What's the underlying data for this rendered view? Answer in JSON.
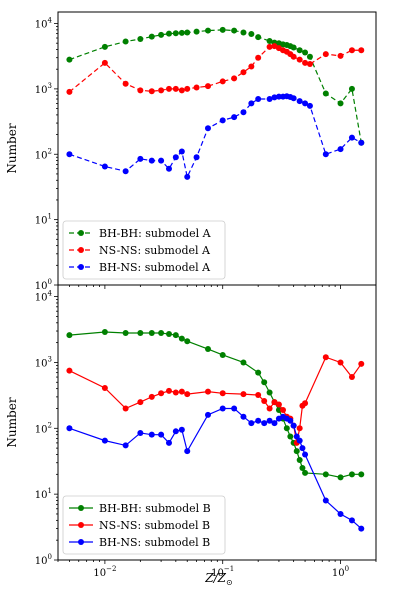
{
  "chart_data": {
    "type": "line",
    "xlabel": "Z/Z⊙",
    "xscale": "log",
    "xlim": [
      0.004,
      2.0
    ],
    "x_ticks": [
      {
        "value": 0.01,
        "mant": "10",
        "exp": "−2"
      },
      {
        "value": 0.1,
        "mant": "10",
        "exp": "−1"
      },
      {
        "value": 1,
        "mant": "10",
        "exp": "0"
      }
    ],
    "panels": [
      {
        "ylabel": "Number",
        "yscale": "log",
        "ylim": [
          1,
          15000
        ],
        "y_ticks": [
          {
            "value": 1,
            "mant": "10",
            "exp": "0"
          },
          {
            "value": 10,
            "mant": "10",
            "exp": "1"
          },
          {
            "value": 100,
            "mant": "10",
            "exp": "2"
          },
          {
            "value": 1000,
            "mant": "10",
            "exp": "3"
          },
          {
            "value": 10000,
            "mant": "10",
            "exp": "4"
          }
        ],
        "legend_position": "lower-left",
        "series": [
          {
            "name": "BH-BH: submodel A",
            "color": "#008000",
            "dash": true,
            "x": [
              0.005,
              0.01,
              0.015,
              0.02,
              0.025,
              0.03,
              0.035,
              0.04,
              0.045,
              0.05,
              0.06,
              0.075,
              0.1,
              0.125,
              0.15,
              0.175,
              0.2,
              0.25,
              0.275,
              0.3,
              0.325,
              0.35,
              0.375,
              0.4,
              0.45,
              0.5,
              0.55,
              0.75,
              1.0,
              1.25,
              1.5
            ],
            "y": [
              2800,
              4400,
              5300,
              5800,
              6300,
              6700,
              7000,
              7100,
              7200,
              7300,
              7500,
              7800,
              8000,
              7800,
              7300,
              6900,
              6200,
              5400,
              5100,
              5000,
              4800,
              4700,
              4500,
              4300,
              3900,
              3600,
              3100,
              850,
              600,
              1000,
              150
            ]
          },
          {
            "name": "NS-NS: submodel A",
            "color": "#ff0000",
            "dash": true,
            "x": [
              0.005,
              0.01,
              0.015,
              0.02,
              0.025,
              0.03,
              0.035,
              0.04,
              0.045,
              0.05,
              0.06,
              0.075,
              0.1,
              0.125,
              0.15,
              0.175,
              0.2,
              0.25,
              0.275,
              0.3,
              0.325,
              0.35,
              0.375,
              0.4,
              0.45,
              0.5,
              0.55,
              0.75,
              1.0,
              1.25,
              1.5
            ],
            "y": [
              900,
              2500,
              1200,
              950,
              920,
              950,
              1000,
              1000,
              950,
              1000,
              1050,
              1100,
              1300,
              1450,
              1800,
              2200,
              3000,
              4400,
              4500,
              4200,
              3900,
              3700,
              3400,
              3100,
              2800,
              2500,
              2400,
              3400,
              3200,
              3900,
              3900
            ]
          },
          {
            "name": "BH-NS: submodel A",
            "color": "#0000ff",
            "dash": true,
            "x": [
              0.005,
              0.01,
              0.015,
              0.02,
              0.025,
              0.03,
              0.035,
              0.04,
              0.045,
              0.05,
              0.06,
              0.075,
              0.1,
              0.125,
              0.15,
              0.175,
              0.2,
              0.25,
              0.275,
              0.3,
              0.325,
              0.35,
              0.375,
              0.4,
              0.45,
              0.5,
              0.55,
              0.75,
              1.0,
              1.25,
              1.5
            ],
            "y": [
              100,
              65,
              55,
              85,
              80,
              80,
              60,
              90,
              110,
              45,
              90,
              250,
              330,
              370,
              440,
              600,
              700,
              700,
              740,
              760,
              760,
              770,
              750,
              720,
              650,
              600,
              550,
              100,
              120,
              180,
              150
            ]
          }
        ]
      },
      {
        "ylabel": "Number",
        "yscale": "log",
        "ylim": [
          1,
          15000
        ],
        "y_ticks": [
          {
            "value": 1,
            "mant": "10",
            "exp": "0"
          },
          {
            "value": 10,
            "mant": "10",
            "exp": "1"
          },
          {
            "value": 100,
            "mant": "10",
            "exp": "2"
          },
          {
            "value": 1000,
            "mant": "10",
            "exp": "3"
          },
          {
            "value": 10000,
            "mant": "10",
            "exp": "4"
          }
        ],
        "legend_position": "lower-left",
        "series": [
          {
            "name": "BH-BH: submodel B",
            "color": "#008000",
            "dash": false,
            "x": [
              0.005,
              0.01,
              0.015,
              0.02,
              0.025,
              0.03,
              0.035,
              0.04,
              0.045,
              0.05,
              0.075,
              0.1,
              0.15,
              0.2,
              0.225,
              0.25,
              0.275,
              0.3,
              0.325,
              0.35,
              0.375,
              0.4,
              0.425,
              0.45,
              0.475,
              0.5,
              0.75,
              1.0,
              1.25,
              1.5
            ],
            "y": [
              2600,
              2900,
              2800,
              2800,
              2800,
              2800,
              2700,
              2600,
              2300,
              2100,
              1600,
              1300,
              1000,
              700,
              500,
              350,
              250,
              190,
              140,
              100,
              75,
              60,
              45,
              33,
              25,
              21,
              20,
              18,
              20,
              20
            ]
          },
          {
            "name": "NS-NS: submodel B",
            "color": "#ff0000",
            "dash": false,
            "x": [
              0.005,
              0.01,
              0.015,
              0.02,
              0.025,
              0.03,
              0.035,
              0.04,
              0.045,
              0.05,
              0.075,
              0.1,
              0.15,
              0.2,
              0.225,
              0.25,
              0.275,
              0.3,
              0.325,
              0.35,
              0.375,
              0.4,
              0.425,
              0.45,
              0.475,
              0.5,
              0.75,
              1.0,
              1.25,
              1.5
            ],
            "y": [
              750,
              410,
              200,
              250,
              300,
              340,
              370,
              350,
              360,
              330,
              360,
              340,
              330,
              320,
              260,
              200,
              250,
              230,
              190,
              150,
              140,
              110,
              60,
              100,
              220,
              240,
              1200,
              1000,
              600,
              950
            ]
          },
          {
            "name": "BH-NS: submodel B",
            "color": "#0000ff",
            "dash": false,
            "x": [
              0.005,
              0.01,
              0.015,
              0.02,
              0.025,
              0.03,
              0.035,
              0.04,
              0.045,
              0.05,
              0.075,
              0.1,
              0.125,
              0.15,
              0.175,
              0.2,
              0.225,
              0.25,
              0.275,
              0.3,
              0.325,
              0.35,
              0.375,
              0.4,
              0.425,
              0.45,
              0.475,
              0.5,
              0.75,
              1.0,
              1.25,
              1.5
            ],
            "y": [
              100,
              65,
              55,
              85,
              80,
              80,
              60,
              90,
              95,
              45,
              160,
              200,
              200,
              150,
              120,
              130,
              120,
              130,
              120,
              140,
              150,
              140,
              130,
              110,
              75,
              65,
              50,
              40,
              8,
              5,
              4,
              3
            ]
          }
        ]
      }
    ]
  }
}
